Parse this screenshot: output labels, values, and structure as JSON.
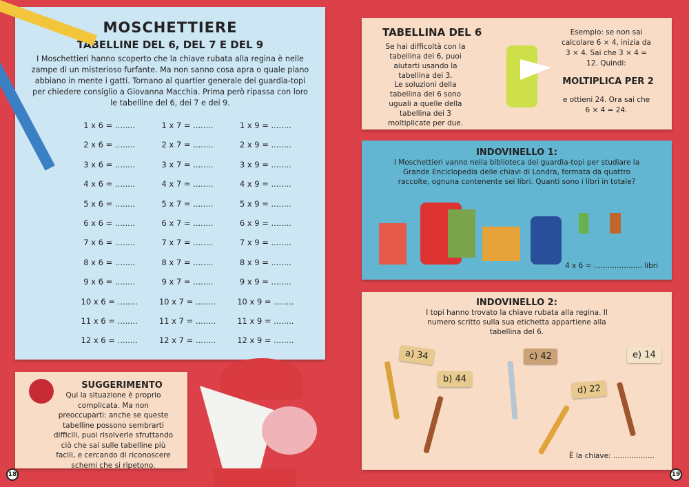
{
  "left": {
    "title": "MOSCHETTIERE",
    "subtitle": "TABELLINE DEL 6, DEL 7 E DEL 9",
    "intro": "I Moschettieri hanno scoperto che la chiave rubata alla regina è nelle zampe di un misterioso furfante. Ma non sanno cosa apra o quale piano abbiano in mente i gatti. Tornano al quartier generale dei guardia-topi per chiedere consiglio a Giovanna Macchia. Prima però ripassa con loro le tabelline del 6, dei 7 e dei 9.",
    "tables": [
      "1 x 6 = ........",
      "1 x 7 = ........",
      "1 x 9 = ........",
      "2 x 6 = ........",
      "2 x 7 = ........",
      "2 x 9 = ........",
      "3 x 6 = ........",
      "3 x 7 = ........",
      "3 x 9 = ........",
      "4 x 6 = ........",
      "4 x 7 = ........",
      "4 x 9 = ........",
      "5 x 6 = ........",
      "5 x 7 = ........",
      "5 x 9 = ........",
      "6 x 6 = ........",
      "6 x 7 = ........",
      "6 x 9 = ........",
      "7 x 6 = ........",
      "7 x 7 = ........",
      "7 x 9 = ........",
      "8 x 6 = ........",
      "8 x 7 = ........",
      "8 x 9 = ........",
      "9 x 6 = ........",
      "9 x 7 = ........",
      "9 x 9 = ........",
      "10 x 6 = ........",
      "10 x 7 = ........",
      "10 x 9 = ........",
      "11 x 6 = ........",
      "11 x 7 = ........",
      "11 x 9 = ........",
      "12 x 6 = ........",
      "12 x 7 = ........",
      "12 x 9 = ........"
    ],
    "tip_title": "SUGGERIMENTO",
    "tip_text": "Qui la situazione è proprio complicata. Ma non preoccuparti: anche se queste tabelline possono sembrarti difficili, puoi risolverle sfruttando ciò che sai sulle tabelline più facili, e cercando di riconoscere schemi che si ripetono.",
    "page_number": "18"
  },
  "right": {
    "t6_title": "TABELLINA DEL 6",
    "t6_p1": "Se hai difficoltà con la tabellina dei 6, puoi aiutarti usando la tabellina dei 3.",
    "t6_p2": "Le soluzioni della tabellina del 6 sono uguali a quelle della tabellina dei 3 moltiplicate per due.",
    "example": "Esempio: se non sai calcolare 6 × 4, inizia da 3 × 4. Sai che 3 × 4 = 12. Quindi:",
    "multiply": "MOLTIPLICA PER 2",
    "result": "e ottieni 24. Ora sai che 6 × 4 = 24.",
    "riddle1_title": "INDOVINELLO 1:",
    "riddle1_text": "I Moschettieri vanno nella biblioteca dei guardia-topi per studiare la Grande Enciclopedia delle chiavi di Londra, formata da quattro raccolte, ognuna contenente sei libri. Quanti sono i libri in totale?",
    "riddle1_answer": "4 x 6 = ..................... libri",
    "riddle2_title": "INDOVINELLO 2:",
    "riddle2_text": "I topi hanno trovato la chiave rubata alla regina. Il numero scritto sulla sua etichetta appartiene alla tabellina del 6.",
    "tags": [
      "a) 34",
      "b) 44",
      "c) 42",
      "d) 22",
      "e) 14"
    ],
    "riddle2_answer": "È la chiave: ..................",
    "page_number": "19"
  }
}
